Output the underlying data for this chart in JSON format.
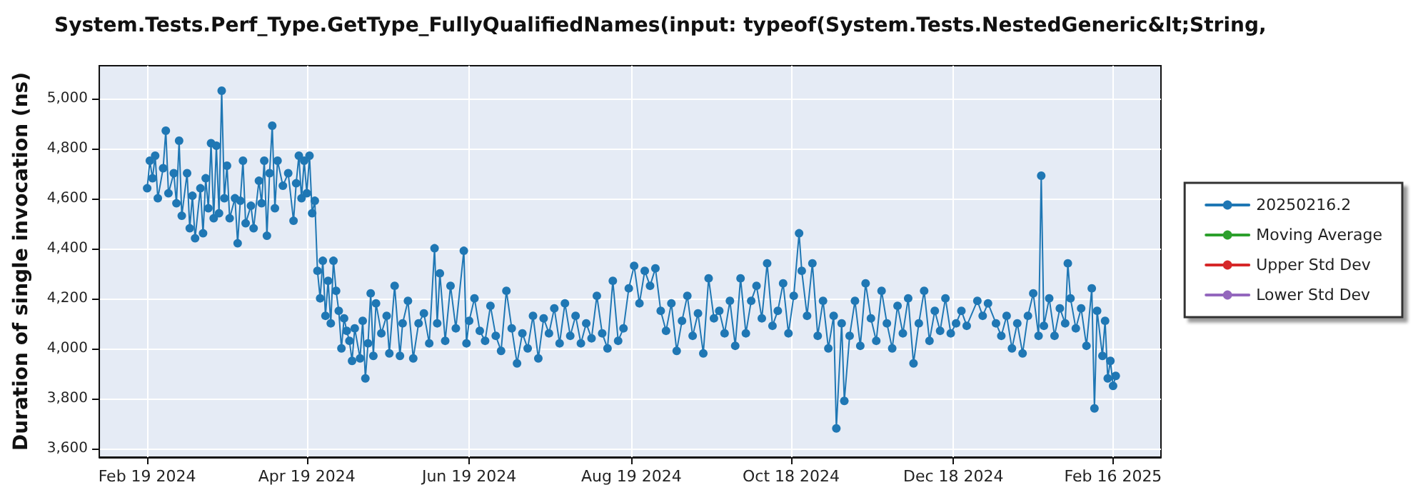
{
  "chart_data": {
    "type": "line",
    "title": "System.Tests.Perf_Type.GetType_FullyQualifiedNames(input: typeof(System.Tests.NestedGeneric&lt;String,",
    "ylabel": "Duration of single invocation (ns)",
    "xlim": [
      "2024-02-01",
      "2025-03-06"
    ],
    "xticks": [
      {
        "value": "2024-02-19",
        "label": "Feb 19 2024"
      },
      {
        "value": "2024-04-19",
        "label": "Apr 19 2024"
      },
      {
        "value": "2024-06-19",
        "label": "Jun 19 2024"
      },
      {
        "value": "2024-08-19",
        "label": "Aug 19 2024"
      },
      {
        "value": "2024-10-18",
        "label": "Oct 18 2024"
      },
      {
        "value": "2024-12-18",
        "label": "Dec 18 2024"
      },
      {
        "value": "2025-02-16",
        "label": "Feb 16 2025"
      }
    ],
    "ylim": [
      3565,
      5130
    ],
    "yticks": [
      {
        "value": 3600,
        "label": "3,600"
      },
      {
        "value": 3800,
        "label": "3,800"
      },
      {
        "value": 4000,
        "label": "4,000"
      },
      {
        "value": 4200,
        "label": "4,200"
      },
      {
        "value": 4400,
        "label": "4,400"
      },
      {
        "value": 4600,
        "label": "4,600"
      },
      {
        "value": 4800,
        "label": "4,800"
      },
      {
        "value": 5000,
        "label": "5,000"
      }
    ],
    "grid": true,
    "legend": "right",
    "marker": "circle",
    "line_style": "solid",
    "series": [
      {
        "name": "20250216.2",
        "color": "#1f77b4",
        "x": [
          "2024-02-19",
          "2024-02-20",
          "2024-02-21",
          "2024-02-22",
          "2024-02-23",
          "2024-02-25",
          "2024-02-26",
          "2024-02-27",
          "2024-02-29",
          "2024-03-01",
          "2024-03-02",
          "2024-03-03",
          "2024-03-05",
          "2024-03-06",
          "2024-03-07",
          "2024-03-08",
          "2024-03-10",
          "2024-03-11",
          "2024-03-12",
          "2024-03-13",
          "2024-03-14",
          "2024-03-15",
          "2024-03-16",
          "2024-03-17",
          "2024-03-18",
          "2024-03-19",
          "2024-03-20",
          "2024-03-21",
          "2024-03-23",
          "2024-03-24",
          "2024-03-25",
          "2024-03-26",
          "2024-03-27",
          "2024-03-29",
          "2024-03-30",
          "2024-04-01",
          "2024-04-02",
          "2024-04-03",
          "2024-04-04",
          "2024-04-05",
          "2024-04-06",
          "2024-04-07",
          "2024-04-08",
          "2024-04-10",
          "2024-04-12",
          "2024-04-14",
          "2024-04-15",
          "2024-04-16",
          "2024-04-17",
          "2024-04-18",
          "2024-04-19",
          "2024-04-20",
          "2024-04-21",
          "2024-04-22",
          "2024-04-23",
          "2024-04-24",
          "2024-04-25",
          "2024-04-26",
          "2024-04-27",
          "2024-04-28",
          "2024-04-29",
          "2024-04-30",
          "2024-05-01",
          "2024-05-02",
          "2024-05-03",
          "2024-05-04",
          "2024-05-05",
          "2024-05-06",
          "2024-05-07",
          "2024-05-09",
          "2024-05-10",
          "2024-05-11",
          "2024-05-12",
          "2024-05-13",
          "2024-05-14",
          "2024-05-15",
          "2024-05-17",
          "2024-05-19",
          "2024-05-20",
          "2024-05-22",
          "2024-05-24",
          "2024-05-25",
          "2024-05-27",
          "2024-05-29",
          "2024-05-31",
          "2024-06-02",
          "2024-06-04",
          "2024-06-06",
          "2024-06-07",
          "2024-06-08",
          "2024-06-10",
          "2024-06-12",
          "2024-06-14",
          "2024-06-17",
          "2024-06-18",
          "2024-06-19",
          "2024-06-21",
          "2024-06-23",
          "2024-06-25",
          "2024-06-27",
          "2024-06-29",
          "2024-07-01",
          "2024-07-03",
          "2024-07-05",
          "2024-07-07",
          "2024-07-09",
          "2024-07-11",
          "2024-07-13",
          "2024-07-15",
          "2024-07-17",
          "2024-07-19",
          "2024-07-21",
          "2024-07-23",
          "2024-07-25",
          "2024-07-27",
          "2024-07-29",
          "2024-07-31",
          "2024-08-02",
          "2024-08-04",
          "2024-08-06",
          "2024-08-08",
          "2024-08-10",
          "2024-08-12",
          "2024-08-14",
          "2024-08-16",
          "2024-08-18",
          "2024-08-20",
          "2024-08-22",
          "2024-08-24",
          "2024-08-26",
          "2024-08-28",
          "2024-08-30",
          "2024-09-01",
          "2024-09-03",
          "2024-09-05",
          "2024-09-07",
          "2024-09-09",
          "2024-09-11",
          "2024-09-13",
          "2024-09-15",
          "2024-09-17",
          "2024-09-19",
          "2024-09-21",
          "2024-09-23",
          "2024-09-25",
          "2024-09-27",
          "2024-09-29",
          "2024-10-01",
          "2024-10-03",
          "2024-10-05",
          "2024-10-07",
          "2024-10-09",
          "2024-10-11",
          "2024-10-13",
          "2024-10-15",
          "2024-10-17",
          "2024-10-19",
          "2024-10-21",
          "2024-10-22",
          "2024-10-24",
          "2024-10-26",
          "2024-10-28",
          "2024-10-30",
          "2024-11-01",
          "2024-11-03",
          "2024-11-04",
          "2024-11-06",
          "2024-11-07",
          "2024-11-09",
          "2024-11-11",
          "2024-11-13",
          "2024-11-15",
          "2024-11-17",
          "2024-11-19",
          "2024-11-21",
          "2024-11-23",
          "2024-11-25",
          "2024-11-27",
          "2024-11-29",
          "2024-12-01",
          "2024-12-03",
          "2024-12-05",
          "2024-12-07",
          "2024-12-09",
          "2024-12-11",
          "2024-12-13",
          "2024-12-15",
          "2024-12-17",
          "2024-12-19",
          "2024-12-21",
          "2024-12-23",
          "2024-12-27",
          "2024-12-29",
          "2024-12-31",
          "2025-01-03",
          "2025-01-05",
          "2025-01-07",
          "2025-01-09",
          "2025-01-11",
          "2025-01-13",
          "2025-01-15",
          "2025-01-17",
          "2025-01-19",
          "2025-01-20",
          "2025-01-21",
          "2025-01-23",
          "2025-01-25",
          "2025-01-27",
          "2025-01-29",
          "2025-01-30",
          "2025-01-31",
          "2025-02-02",
          "2025-02-04",
          "2025-02-06",
          "2025-02-08",
          "2025-02-09",
          "2025-02-10",
          "2025-02-12",
          "2025-02-13",
          "2025-02-14",
          "2025-02-15",
          "2025-02-16",
          "2025-02-17"
        ],
        "values": [
          4640,
          4750,
          4680,
          4770,
          4600,
          4720,
          4870,
          4620,
          4700,
          4580,
          4830,
          4530,
          4700,
          4480,
          4610,
          4440,
          4640,
          4460,
          4680,
          4560,
          4820,
          4520,
          4810,
          4540,
          5030,
          4600,
          4730,
          4520,
          4600,
          4420,
          4590,
          4750,
          4500,
          4570,
          4480,
          4670,
          4580,
          4750,
          4450,
          4700,
          4890,
          4560,
          4750,
          4650,
          4700,
          4510,
          4660,
          4770,
          4600,
          4750,
          4620,
          4770,
          4540,
          4590,
          4310,
          4200,
          4350,
          4130,
          4270,
          4100,
          4350,
          4230,
          4150,
          4000,
          4120,
          4070,
          4030,
          3950,
          4080,
          3960,
          4110,
          3880,
          4020,
          4220,
          3970,
          4180,
          4060,
          4130,
          3980,
          4250,
          3970,
          4100,
          4190,
          3960,
          4100,
          4140,
          4020,
          4400,
          4100,
          4300,
          4030,
          4250,
          4080,
          4390,
          4020,
          4110,
          4200,
          4070,
          4030,
          4170,
          4050,
          3990,
          4230,
          4080,
          3940,
          4060,
          4000,
          4130,
          3960,
          4120,
          4060,
          4160,
          4020,
          4180,
          4050,
          4130,
          4020,
          4100,
          4040,
          4210,
          4060,
          4000,
          4270,
          4030,
          4080,
          4240,
          4330,
          4180,
          4310,
          4250,
          4320,
          4150,
          4070,
          4180,
          3990,
          4110,
          4210,
          4050,
          4140,
          3980,
          4280,
          4120,
          4150,
          4060,
          4190,
          4010,
          4280,
          4060,
          4190,
          4250,
          4120,
          4340,
          4090,
          4150,
          4260,
          4060,
          4210,
          4460,
          4310,
          4130,
          4340,
          4050,
          4190,
          4000,
          4130,
          3680,
          4100,
          3790,
          4050,
          4190,
          4010,
          4260,
          4120,
          4030,
          4230,
          4100,
          4000,
          4170,
          4060,
          4200,
          3940,
          4100,
          4230,
          4030,
          4150,
          4070,
          4200,
          4060,
          4100,
          4150,
          4090,
          4190,
          4130,
          4180,
          4100,
          4050,
          4130,
          4000,
          4100,
          3980,
          4130,
          4220,
          4050,
          4690,
          4090,
          4200,
          4050,
          4160,
          4100,
          4340,
          4200,
          4080,
          4160,
          4010,
          4240,
          3760,
          4150,
          3970,
          4110,
          3880,
          3950,
          3850,
          3890
        ]
      },
      {
        "name": "Moving Average",
        "color": "#2ca02c"
      },
      {
        "name": "Upper Std Dev",
        "color": "#d62728"
      },
      {
        "name": "Lower Std Dev",
        "color": "#9467bd"
      }
    ]
  }
}
